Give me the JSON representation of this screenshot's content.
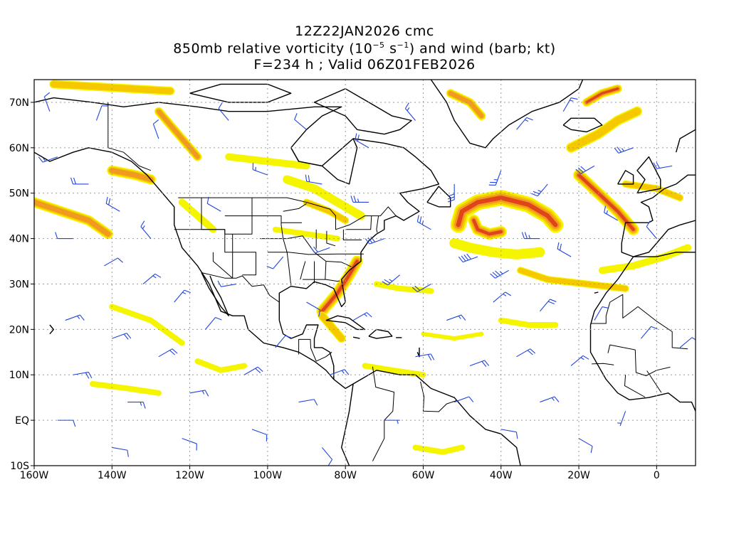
{
  "title": {
    "line1": "12Z22JAN2026 cmc",
    "line2_prefix": "850mb relative vorticity (10",
    "line2_exp1": "−5",
    "line2_mid": " s",
    "line2_exp2": "−1",
    "line2_suffix": ") and wind (barb; kt)",
    "line3": "F=234 h ; Valid 06Z01FEB2026"
  },
  "axes": {
    "lon_ticks": [
      {
        "lon": -160,
        "label": "160W"
      },
      {
        "lon": -140,
        "label": "140W"
      },
      {
        "lon": -120,
        "label": "120W"
      },
      {
        "lon": -100,
        "label": "100W"
      },
      {
        "lon": -80,
        "label": "80W"
      },
      {
        "lon": -60,
        "label": "60W"
      },
      {
        "lon": -40,
        "label": "40W"
      },
      {
        "lon": -20,
        "label": "20W"
      },
      {
        "lon": 0,
        "label": "0"
      }
    ],
    "lat_ticks": [
      {
        "lat": 70,
        "label": "70N"
      },
      {
        "lat": 60,
        "label": "60N"
      },
      {
        "lat": 50,
        "label": "50N"
      },
      {
        "lat": 40,
        "label": "40N"
      },
      {
        "lat": 30,
        "label": "30N"
      },
      {
        "lat": 20,
        "label": "20N"
      },
      {
        "lat": 10,
        "label": "10N"
      },
      {
        "lat": 0,
        "label": "EQ"
      },
      {
        "lat": -10,
        "label": "10S"
      }
    ],
    "lon_range": [
      -160,
      10
    ],
    "lat_range": [
      -10,
      75
    ],
    "grid": "dotted"
  },
  "colors": {
    "level1": "#f5f500",
    "level2": "#f5c800",
    "level3": "#f09a20",
    "level4": "#e0441a",
    "barb": "#2244dd",
    "coast": "#000000"
  },
  "vorticity_features": [
    {
      "name": "north-atlantic-low",
      "pts": [
        [
          -51,
          43
        ],
        [
          -50,
          46
        ],
        [
          -46,
          48
        ],
        [
          -40,
          49
        ],
        [
          -33,
          47.5
        ],
        [
          -28,
          45
        ],
        [
          -26,
          43
        ]
      ],
      "lvl": 4,
      "w": 22
    },
    {
      "name": "north-atlantic-low-core",
      "pts": [
        [
          -47,
          44
        ],
        [
          -46,
          42
        ],
        [
          -43,
          41
        ],
        [
          -40,
          41.5
        ]
      ],
      "lvl": 4,
      "w": 16
    },
    {
      "name": "north-atlantic-low-tail",
      "pts": [
        [
          -52,
          39
        ],
        [
          -48,
          38
        ],
        [
          -42,
          37
        ],
        [
          -36,
          36.5
        ],
        [
          -30,
          37
        ]
      ],
      "lvl": 1,
      "w": 14
    },
    {
      "name": "east-atlantic-band",
      "pts": [
        [
          -20,
          54
        ],
        [
          -15,
          50
        ],
        [
          -10,
          46
        ],
        [
          -6,
          42
        ]
      ],
      "lvl": 4,
      "w": 16
    },
    {
      "name": "east-atlantic-band-north",
      "pts": [
        [
          -22,
          60
        ],
        [
          -15,
          63
        ],
        [
          -10,
          66
        ],
        [
          -5,
          68
        ]
      ],
      "lvl": 2,
      "w": 14
    },
    {
      "name": "iceland-patch",
      "pts": [
        [
          -18,
          70
        ],
        [
          -14,
          72
        ],
        [
          -10,
          73
        ]
      ],
      "lvl": 4,
      "w": 12
    },
    {
      "name": "southeast-us-front",
      "pts": [
        [
          -86,
          24
        ],
        [
          -82,
          28
        ],
        [
          -79,
          32
        ],
        [
          -77,
          35
        ]
      ],
      "lvl": 4,
      "w": 16
    },
    {
      "name": "southeast-us-front-south",
      "pts": [
        [
          -86,
          23
        ],
        [
          -83,
          20
        ],
        [
          -81,
          18
        ]
      ],
      "lvl": 2,
      "w": 12
    },
    {
      "name": "gulf-alaska-band",
      "pts": [
        [
          -160,
          48
        ],
        [
          -153,
          46
        ],
        [
          -146,
          44
        ],
        [
          -141,
          41
        ]
      ],
      "lvl": 3,
      "w": 14
    },
    {
      "name": "alaska-patch",
      "pts": [
        [
          -140,
          55
        ],
        [
          -134,
          54
        ],
        [
          -130,
          53
        ]
      ],
      "lvl": 3,
      "w": 14
    },
    {
      "name": "bc-band",
      "pts": [
        [
          -128,
          68
        ],
        [
          -124,
          64
        ],
        [
          -121,
          61
        ],
        [
          -118,
          58
        ]
      ],
      "lvl": 3,
      "w": 12
    },
    {
      "name": "arctic-band",
      "pts": [
        [
          -155,
          74
        ],
        [
          -145,
          73.5
        ],
        [
          -135,
          73
        ],
        [
          -125,
          72.5
        ]
      ],
      "lvl": 2,
      "w": 12
    },
    {
      "name": "greenland-band",
      "pts": [
        [
          -53,
          72
        ],
        [
          -48,
          70
        ],
        [
          -45,
          67
        ]
      ],
      "lvl": 3,
      "w": 12
    },
    {
      "name": "hudson-band",
      "pts": [
        [
          -95,
          53
        ],
        [
          -88,
          51
        ],
        [
          -82,
          48
        ],
        [
          -76,
          45
        ]
      ],
      "lvl": 1,
      "w": 12
    },
    {
      "name": "canada-band",
      "pts": [
        [
          -110,
          58
        ],
        [
          -100,
          57
        ],
        [
          -90,
          56
        ]
      ],
      "lvl": 1,
      "w": 10
    },
    {
      "name": "sw-atlantic-band",
      "pts": [
        [
          -72,
          30
        ],
        [
          -66,
          29
        ],
        [
          -58,
          28.5
        ]
      ],
      "lvl": 1,
      "w": 8
    },
    {
      "name": "e-pacific-band",
      "pts": [
        [
          -140,
          25
        ],
        [
          -130,
          22
        ],
        [
          -122,
          17
        ]
      ],
      "lvl": 1,
      "w": 8
    },
    {
      "name": "e-pacific-band-2",
      "pts": [
        [
          -118,
          13
        ],
        [
          -112,
          11
        ],
        [
          -106,
          12
        ]
      ],
      "lvl": 1,
      "w": 8
    },
    {
      "name": "trop-pacific-band",
      "pts": [
        [
          -145,
          8
        ],
        [
          -136,
          7
        ],
        [
          -128,
          6
        ]
      ],
      "lvl": 1,
      "w": 8
    },
    {
      "name": "trop-atlantic-band",
      "pts": [
        [
          -35,
          33
        ],
        [
          -28,
          31
        ],
        [
          -18,
          30
        ],
        [
          -8,
          29
        ]
      ],
      "lvl": 2,
      "w": 10
    },
    {
      "name": "africa-band",
      "pts": [
        [
          -14,
          33
        ],
        [
          -6,
          34
        ],
        [
          2,
          36
        ],
        [
          8,
          38
        ]
      ],
      "lvl": 1,
      "w": 10
    },
    {
      "name": "eu-band",
      "pts": [
        [
          -8,
          52
        ],
        [
          0,
          51
        ],
        [
          6,
          49
        ]
      ],
      "lvl": 2,
      "w": 10
    },
    {
      "name": "samerica-band",
      "pts": [
        [
          -75,
          12
        ],
        [
          -68,
          11
        ],
        [
          -60,
          10
        ]
      ],
      "lvl": 1,
      "w": 8
    },
    {
      "name": "samerica-band-2",
      "pts": [
        [
          -62,
          -6
        ],
        [
          -55,
          -7
        ],
        [
          -50,
          -6
        ]
      ],
      "lvl": 1,
      "w": 8
    },
    {
      "name": "rockies-band",
      "pts": [
        [
          -122,
          48
        ],
        [
          -118,
          45
        ],
        [
          -114,
          42
        ]
      ],
      "lvl": 1,
      "w": 10
    },
    {
      "name": "plains-band",
      "pts": [
        [
          -98,
          42
        ],
        [
          -90,
          41
        ],
        [
          -82,
          40
        ]
      ],
      "lvl": 1,
      "w": 8
    },
    {
      "name": "great-lakes-band",
      "pts": [
        [
          -90,
          48
        ],
        [
          -84,
          46
        ],
        [
          -80,
          44
        ]
      ],
      "lvl": 2,
      "w": 10
    },
    {
      "name": "mid-atlantic-band",
      "pts": [
        [
          -40,
          22
        ],
        [
          -33,
          21
        ],
        [
          -26,
          21
        ]
      ],
      "lvl": 1,
      "w": 8
    },
    {
      "name": "central-atlantic-band",
      "pts": [
        [
          -60,
          19
        ],
        [
          -52,
          18
        ],
        [
          -45,
          19
        ]
      ],
      "lvl": 1,
      "w": 6
    }
  ],
  "wind_barbs": [
    {
      "lon": -154,
      "lat": 58,
      "dir": 250,
      "spd": 15
    },
    {
      "lon": -146,
      "lat": 52,
      "dir": 270,
      "spd": 20
    },
    {
      "lon": -138,
      "lat": 46,
      "dir": 300,
      "spd": 20
    },
    {
      "lon": -130,
      "lat": 40,
      "dir": 320,
      "spd": 15
    },
    {
      "lon": -150,
      "lat": 40,
      "dir": 270,
      "spd": 10
    },
    {
      "lon": -142,
      "lat": 34,
      "dir": 60,
      "spd": 10
    },
    {
      "lon": -132,
      "lat": 30,
      "dir": 50,
      "spd": 15
    },
    {
      "lon": -124,
      "lat": 26,
      "dir": 40,
      "spd": 15
    },
    {
      "lon": -152,
      "lat": 22,
      "dir": 70,
      "spd": 15
    },
    {
      "lon": -140,
      "lat": 18,
      "dir": 70,
      "spd": 20
    },
    {
      "lon": -128,
      "lat": 14,
      "dir": 60,
      "spd": 20
    },
    {
      "lon": -116,
      "lat": 20,
      "dir": 40,
      "spd": 10
    },
    {
      "lon": -150,
      "lat": 10,
      "dir": 80,
      "spd": 20
    },
    {
      "lon": -136,
      "lat": 4,
      "dir": 90,
      "spd": 15
    },
    {
      "lon": -120,
      "lat": 6,
      "dir": 80,
      "spd": 15
    },
    {
      "lon": -106,
      "lat": 10,
      "dir": 60,
      "spd": 20
    },
    {
      "lon": -154,
      "lat": 0,
      "dir": 90,
      "spd": 10
    },
    {
      "lon": -140,
      "lat": -6,
      "dir": 100,
      "spd": 10
    },
    {
      "lon": -122,
      "lat": -4,
      "dir": 110,
      "spd": 10
    },
    {
      "lon": -104,
      "lat": -2,
      "dir": 110,
      "spd": 10
    },
    {
      "lon": -92,
      "lat": 4,
      "dir": 80,
      "spd": 10
    },
    {
      "lon": -86,
      "lat": -6,
      "dir": 140,
      "spd": 10
    },
    {
      "lon": -70,
      "lat": 0,
      "dir": 90,
      "spd": 5
    },
    {
      "lon": -52,
      "lat": 4,
      "dir": 70,
      "spd": 10
    },
    {
      "lon": -40,
      "lat": -2,
      "dir": 100,
      "spd": 10
    },
    {
      "lon": -30,
      "lat": 4,
      "dir": 70,
      "spd": 15
    },
    {
      "lon": -20,
      "lat": -4,
      "dir": 120,
      "spd": 10
    },
    {
      "lon": -8,
      "lat": 2,
      "dir": 200,
      "spd": 5
    },
    {
      "lon": -62,
      "lat": 14,
      "dir": 80,
      "spd": 20
    },
    {
      "lon": -48,
      "lat": 12,
      "dir": 70,
      "spd": 20
    },
    {
      "lon": -36,
      "lat": 14,
      "dir": 60,
      "spd": 20
    },
    {
      "lon": -22,
      "lat": 12,
      "dir": 50,
      "spd": 15
    },
    {
      "lon": -54,
      "lat": 22,
      "dir": 70,
      "spd": 15
    },
    {
      "lon": -42,
      "lat": 26,
      "dir": 50,
      "spd": 15
    },
    {
      "lon": -30,
      "lat": 24,
      "dir": 40,
      "spd": 20
    },
    {
      "lon": -16,
      "lat": 22,
      "dir": 30,
      "spd": 10
    },
    {
      "lon": -4,
      "lat": 18,
      "dir": 40,
      "spd": 10
    },
    {
      "lon": 6,
      "lat": 16,
      "dir": 50,
      "spd": 10
    },
    {
      "lon": -66,
      "lat": 32,
      "dir": 230,
      "spd": 25
    },
    {
      "lon": -58,
      "lat": 30,
      "dir": 240,
      "spd": 20
    },
    {
      "lon": -70,
      "lat": 40,
      "dir": 250,
      "spd": 30
    },
    {
      "lon": -58,
      "lat": 42,
      "dir": 300,
      "spd": 25
    },
    {
      "lon": -46,
      "lat": 36,
      "dir": 250,
      "spd": 40
    },
    {
      "lon": -38,
      "lat": 33,
      "dir": 240,
      "spd": 35
    },
    {
      "lon": -30,
      "lat": 40,
      "dir": 270,
      "spd": 25
    },
    {
      "lon": -22,
      "lat": 36,
      "dir": 300,
      "spd": 20
    },
    {
      "lon": -52,
      "lat": 52,
      "dir": 180,
      "spd": 30
    },
    {
      "lon": -40,
      "lat": 55,
      "dir": 200,
      "spd": 25
    },
    {
      "lon": -28,
      "lat": 52,
      "dir": 220,
      "spd": 25
    },
    {
      "lon": -16,
      "lat": 56,
      "dir": 240,
      "spd": 30
    },
    {
      "lon": -6,
      "lat": 60,
      "dir": 250,
      "spd": 25
    },
    {
      "lon": 4,
      "lat": 56,
      "dir": 260,
      "spd": 20
    },
    {
      "lon": -10,
      "lat": 44,
      "dir": 300,
      "spd": 15
    },
    {
      "lon": 0,
      "lat": 40,
      "dir": 320,
      "spd": 10
    },
    {
      "lon": -36,
      "lat": 64,
      "dir": 40,
      "spd": 15
    },
    {
      "lon": -24,
      "lat": 68,
      "dir": 30,
      "spd": 15
    },
    {
      "lon": -62,
      "lat": 66,
      "dir": 320,
      "spd": 15
    },
    {
      "lon": -74,
      "lat": 60,
      "dir": 300,
      "spd": 20
    },
    {
      "lon": -90,
      "lat": 64,
      "dir": 310,
      "spd": 10
    },
    {
      "lon": -110,
      "lat": 66,
      "dir": 320,
      "spd": 10
    },
    {
      "lon": -128,
      "lat": 62,
      "dir": 340,
      "spd": 10
    },
    {
      "lon": -100,
      "lat": 54,
      "dir": 290,
      "spd": 15
    },
    {
      "lon": -86,
      "lat": 52,
      "dir": 280,
      "spd": 20
    },
    {
      "lon": -74,
      "lat": 48,
      "dir": 270,
      "spd": 25
    },
    {
      "lon": -112,
      "lat": 46,
      "dir": 300,
      "spd": 10
    },
    {
      "lon": -96,
      "lat": 36,
      "dir": 220,
      "spd": 10
    },
    {
      "lon": -84,
      "lat": 38,
      "dir": 250,
      "spd": 20
    },
    {
      "lon": -108,
      "lat": 30,
      "dir": 260,
      "spd": 10
    },
    {
      "lon": -90,
      "lat": 26,
      "dir": 120,
      "spd": 10
    },
    {
      "lon": -78,
      "lat": 22,
      "dir": 60,
      "spd": 15
    },
    {
      "lon": -98,
      "lat": 16,
      "dir": 40,
      "spd": 10
    },
    {
      "lon": -84,
      "lat": 10,
      "dir": 70,
      "spd": 15
    },
    {
      "lon": -144,
      "lat": 66,
      "dir": 20,
      "spd": 10
    },
    {
      "lon": -156,
      "lat": 68,
      "dir": 340,
      "spd": 10
    }
  ]
}
